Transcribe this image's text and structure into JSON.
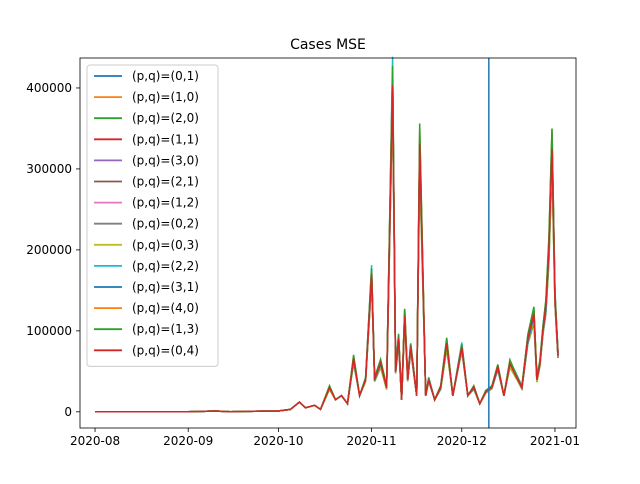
{
  "chart_data": {
    "type": "line",
    "title": "Cases MSE",
    "xlabel": "",
    "ylabel": "",
    "x_ticks": [
      "2020-08",
      "2020-09",
      "2020-10",
      "2020-11",
      "2020-12",
      "2021-01"
    ],
    "y_ticks": [
      "0",
      "100000",
      "200000",
      "300000",
      "400000"
    ],
    "xlim": [
      "2020-07-27",
      "2021-01-08"
    ],
    "ylim": [
      -20000,
      437000
    ],
    "grid": false,
    "legend_position": "upper left",
    "vertical_line": {
      "x": "2020-12-10",
      "color": "#1f77b4"
    },
    "base_series": {
      "x": [
        "2020-08-01",
        "2020-08-15",
        "2020-09-01",
        "2020-09-10",
        "2020-09-15",
        "2020-09-20",
        "2020-10-01",
        "2020-10-05",
        "2020-10-08",
        "2020-10-10",
        "2020-10-13",
        "2020-10-15",
        "2020-10-18",
        "2020-10-20",
        "2020-10-22",
        "2020-10-24",
        "2020-10-26",
        "2020-10-28",
        "2020-10-30",
        "2020-11-01",
        "2020-11-02",
        "2020-11-04",
        "2020-11-06",
        "2020-11-08",
        "2020-11-09",
        "2020-11-10",
        "2020-11-11",
        "2020-11-12",
        "2020-11-13",
        "2020-11-14",
        "2020-11-16",
        "2020-11-17",
        "2020-11-19",
        "2020-11-20",
        "2020-11-22",
        "2020-11-24",
        "2020-11-26",
        "2020-11-28",
        "2020-12-01",
        "2020-12-03",
        "2020-12-05",
        "2020-12-07",
        "2020-12-09",
        "2020-12-11",
        "2020-12-13",
        "2020-12-15",
        "2020-12-17",
        "2020-12-19",
        "2020-12-21",
        "2020-12-23",
        "2020-12-25",
        "2020-12-26",
        "2020-12-27",
        "2020-12-28",
        "2020-12-29",
        "2020-12-30",
        "2020-12-31",
        "2021-01-01",
        "2021-01-02"
      ],
      "y": [
        0,
        0,
        0,
        1000,
        0,
        500,
        1000,
        3000,
        12000,
        5000,
        8000,
        3000,
        30000,
        15000,
        20000,
        10000,
        65000,
        20000,
        40000,
        170000,
        40000,
        60000,
        30000,
        410000,
        50000,
        90000,
        15000,
        120000,
        40000,
        80000,
        20000,
        330000,
        20000,
        40000,
        15000,
        30000,
        85000,
        20000,
        80000,
        20000,
        30000,
        10000,
        25000,
        30000,
        55000,
        20000,
        60000,
        45000,
        30000,
        90000,
        120000,
        40000,
        60000,
        100000,
        130000,
        200000,
        330000,
        140000,
        70000
      ]
    },
    "series": [
      {
        "name": "(p,q)=(0,1)",
        "color": "#1f77b4",
        "jitter": 0.96
      },
      {
        "name": "(p,q)=(1,0)",
        "color": "#ff7f0e",
        "jitter": 1.03
      },
      {
        "name": "(p,q)=(2,0)",
        "color": "#2ca02c",
        "jitter": 0.93
      },
      {
        "name": "(p,q)=(1,1)",
        "color": "#d62728",
        "jitter": 1.0
      },
      {
        "name": "(p,q)=(3,0)",
        "color": "#9467bd",
        "jitter": 0.98
      },
      {
        "name": "(p,q)=(2,1)",
        "color": "#8c564b",
        "jitter": 1.01
      },
      {
        "name": "(p,q)=(1,2)",
        "color": "#e377c2",
        "jitter": 0.97
      },
      {
        "name": "(p,q)=(0,2)",
        "color": "#7f7f7f",
        "jitter": 1.02
      },
      {
        "name": "(p,q)=(0,3)",
        "color": "#bcbd22",
        "jitter": 0.95
      },
      {
        "name": "(p,q)=(2,2)",
        "color": "#17becf",
        "jitter": 1.05
      },
      {
        "name": "(p,q)=(3,1)",
        "color": "#1f77b4",
        "jitter": 0.99
      },
      {
        "name": "(p,q)=(4,0)",
        "color": "#ff7f0e",
        "jitter": 1.04
      },
      {
        "name": "(p,q)=(1,3)",
        "color": "#2ca02c",
        "jitter": 1.06
      },
      {
        "name": "(p,q)=(0,4)",
        "color": "#d62728",
        "jitter": 1.0
      }
    ]
  }
}
